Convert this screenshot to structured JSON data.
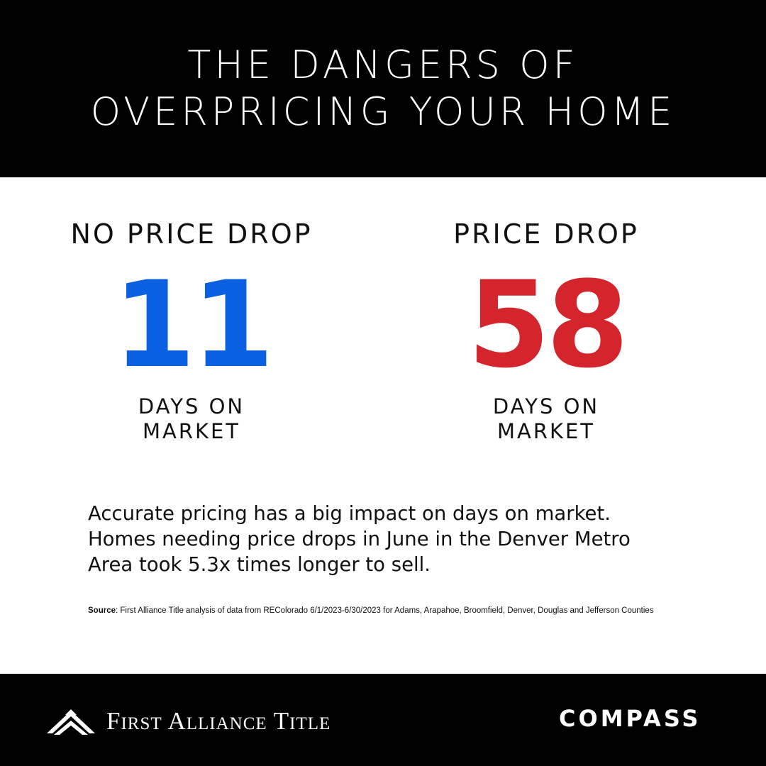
{
  "header": {
    "title_line1": "THE DANGERS OF",
    "title_line2": "OVERPRICING YOUR HOME"
  },
  "comparison": {
    "no_drop": {
      "title": "NO PRICE DROP",
      "value": "11",
      "label_line1": "DAYS ON",
      "label_line2": "MARKET",
      "color": "#0a60e0"
    },
    "drop": {
      "title": "PRICE DROP",
      "value": "58",
      "label_line1": "DAYS ON",
      "label_line2": "MARKET",
      "color": "#d4252c"
    }
  },
  "body": {
    "line1": "Accurate pricing has a big impact on days on market.",
    "line2": "Homes needing price drops in June in the Denver Metro",
    "line3": "Area took 5.3x times longer to sell."
  },
  "source": {
    "label": "Source",
    "text": ": First Alliance Title analysis of data from REColorado 6/1/2023-6/30/2023 for Adams, Arapahoe, Broomfield, Denver, Douglas and Jefferson Counties"
  },
  "footer": {
    "left_logo_text": "First Alliance Title",
    "left_logo_icon": "house-roof-icon",
    "right_logo_text": "COMPASS"
  }
}
